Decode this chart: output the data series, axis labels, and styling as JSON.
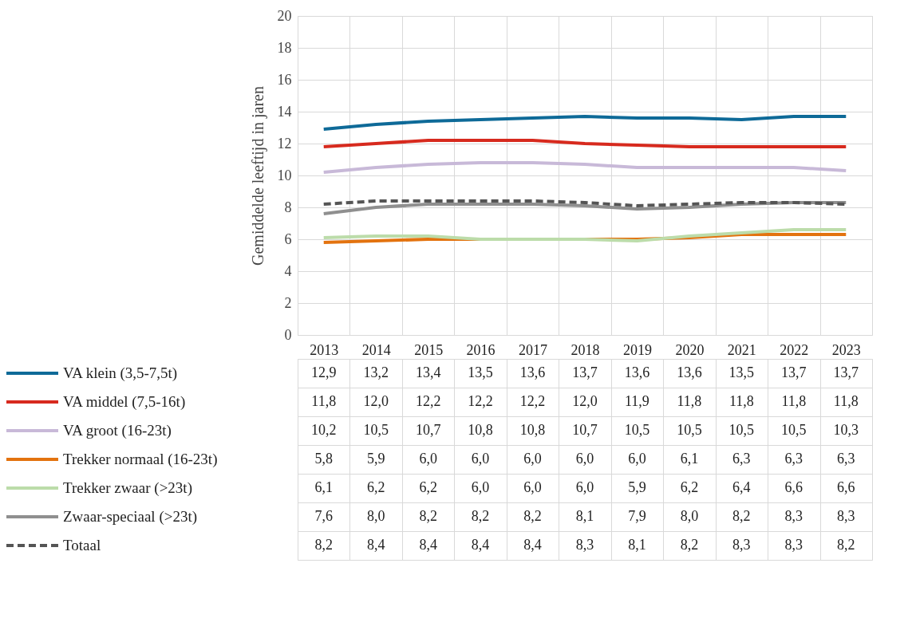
{
  "chart_data": {
    "type": "line",
    "ylabel": "Gemiddelde leeftijd in jaren",
    "categories": [
      "2013",
      "2014",
      "2015",
      "2016",
      "2017",
      "2018",
      "2019",
      "2020",
      "2021",
      "2022",
      "2023"
    ],
    "series": [
      {
        "name": "VA klein (3,5-7,5t)",
        "color": "#0e6a98",
        "line_style": "solid",
        "values": [
          12.9,
          13.2,
          13.4,
          13.5,
          13.6,
          13.7,
          13.6,
          13.6,
          13.5,
          13.7,
          13.7
        ],
        "value_labels": [
          "12,9",
          "13,2",
          "13,4",
          "13,5",
          "13,6",
          "13,7",
          "13,6",
          "13,6",
          "13,5",
          "13,7",
          "13,7"
        ]
      },
      {
        "name": "VA middel (7,5-16t)",
        "color": "#d72a1e",
        "line_style": "solid",
        "values": [
          11.8,
          12.0,
          12.2,
          12.2,
          12.2,
          12.0,
          11.9,
          11.8,
          11.8,
          11.8,
          11.8
        ],
        "value_labels": [
          "11,8",
          "12,0",
          "12,2",
          "12,2",
          "12,2",
          "12,0",
          "11,9",
          "11,8",
          "11,8",
          "11,8",
          "11,8"
        ]
      },
      {
        "name": "VA groot (16-23t)",
        "color": "#c8b9d8",
        "line_style": "solid",
        "values": [
          10.2,
          10.5,
          10.7,
          10.8,
          10.8,
          10.7,
          10.5,
          10.5,
          10.5,
          10.5,
          10.3
        ],
        "value_labels": [
          "10,2",
          "10,5",
          "10,7",
          "10,8",
          "10,8",
          "10,7",
          "10,5",
          "10,5",
          "10,5",
          "10,5",
          "10,3"
        ]
      },
      {
        "name": "Trekker normaal (16-23t)",
        "color": "#e3730f",
        "line_style": "solid",
        "values": [
          5.8,
          5.9,
          6.0,
          6.0,
          6.0,
          6.0,
          6.0,
          6.1,
          6.3,
          6.3,
          6.3
        ],
        "value_labels": [
          "5,8",
          "5,9",
          "6,0",
          "6,0",
          "6,0",
          "6,0",
          "6,0",
          "6,1",
          "6,3",
          "6,3",
          "6,3"
        ]
      },
      {
        "name": "Trekker zwaar (>23t)",
        "color": "#bcdcaa",
        "line_style": "solid",
        "values": [
          6.1,
          6.2,
          6.2,
          6.0,
          6.0,
          6.0,
          5.9,
          6.2,
          6.4,
          6.6,
          6.6
        ],
        "value_labels": [
          "6,1",
          "6,2",
          "6,2",
          "6,0",
          "6,0",
          "6,0",
          "5,9",
          "6,2",
          "6,4",
          "6,6",
          "6,6"
        ]
      },
      {
        "name": "Zwaar-speciaal (>23t)",
        "color": "#8f8f8f",
        "line_style": "solid",
        "values": [
          7.6,
          8.0,
          8.2,
          8.2,
          8.2,
          8.1,
          7.9,
          8.0,
          8.2,
          8.3,
          8.3
        ],
        "value_labels": [
          "7,6",
          "8,0",
          "8,2",
          "8,2",
          "8,2",
          "8,1",
          "7,9",
          "8,0",
          "8,2",
          "8,3",
          "8,3"
        ]
      },
      {
        "name": "Totaal",
        "color": "#555555",
        "line_style": "dashed",
        "values": [
          8.2,
          8.4,
          8.4,
          8.4,
          8.4,
          8.3,
          8.1,
          8.2,
          8.3,
          8.3,
          8.2
        ],
        "value_labels": [
          "8,2",
          "8,4",
          "8,4",
          "8,4",
          "8,4",
          "8,3",
          "8,1",
          "8,2",
          "8,3",
          "8,3",
          "8,2"
        ]
      }
    ],
    "ylim": [
      0,
      20
    ],
    "yticks": [
      0,
      2,
      4,
      6,
      8,
      10,
      12,
      14,
      16,
      18,
      20
    ],
    "grid": true,
    "legend": "bottom"
  }
}
